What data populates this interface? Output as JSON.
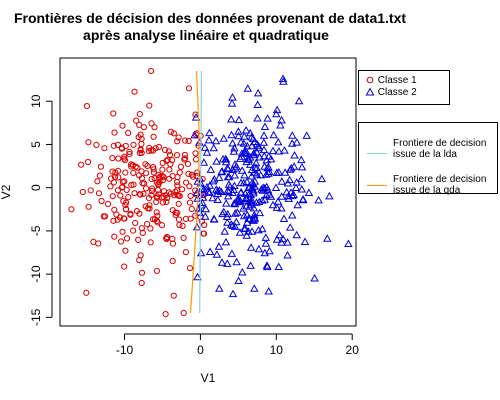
{
  "chart_data": {
    "type": "scatter",
    "title": [
      "Frontières de décision des données provenant de data1.txt",
      "après analyse linéaire et quadratique"
    ],
    "xlabel": "V1",
    "ylabel": "V2",
    "xlim": [
      -18.5,
      20.5
    ],
    "ylim": [
      -16,
      15
    ],
    "x_ticks": [
      -10,
      0,
      10,
      20
    ],
    "y_ticks": [
      -15,
      -10,
      -5,
      0,
      5,
      10
    ],
    "x_tick_labels": [
      "-10",
      "0",
      "10",
      "20"
    ],
    "y_tick_labels": [
      "-15",
      "-10",
      "-5",
      "0",
      "5",
      "10"
    ],
    "grid": false,
    "series": [
      {
        "name": "Classe 1",
        "marker": "circle",
        "color": "#dd0000",
        "n": 260,
        "center": [
          -6.5,
          0
        ],
        "spread": [
          4,
          4.2
        ],
        "extremes": [
          [
            -6.5,
            13.5
          ],
          [
            -2.2,
            -14.5
          ],
          [
            -17,
            -2.5
          ],
          [
            -15.5,
            -0.5
          ],
          [
            -1.5,
            11.5
          ],
          [
            -3.5,
            -12.5
          ]
        ]
      },
      {
        "name": "Classe 2",
        "marker": "triangle",
        "color": "#0000dd",
        "n": 300,
        "center": [
          6.5,
          0
        ],
        "spread": [
          3.8,
          4.1
        ],
        "extremes": [
          [
            19.5,
            -6.5
          ],
          [
            13,
            10
          ],
          [
            16,
            1
          ],
          [
            9,
            -12
          ],
          [
            10,
            8.5
          ],
          [
            14,
            6
          ],
          [
            17,
            -1
          ]
        ]
      }
    ],
    "boundaries": [
      {
        "name": "Frontiere de decision issue de la lda",
        "color": "#87ceeb",
        "points": [
          [
            0.15,
            13.5
          ],
          [
            -0.1,
            -14.5
          ]
        ]
      },
      {
        "name": "Frontiere de decision issue de la qda",
        "color": "#ff9900",
        "points": [
          [
            -0.5,
            13.5
          ],
          [
            -0.2,
            7
          ],
          [
            -0.2,
            2
          ],
          [
            -0.45,
            -3
          ],
          [
            -0.8,
            -8
          ],
          [
            -1.3,
            -14.5
          ]
        ]
      }
    ]
  },
  "legend_points": [
    {
      "label": "Classe 1",
      "color": "#dd0000",
      "marker": "circle"
    },
    {
      "label": "Classe 2",
      "color": "#0000dd",
      "marker": "triangle"
    }
  ],
  "legend_lines": [
    {
      "lines": [
        "Frontiere de decision",
        "issue de la lda"
      ],
      "color": "#87ceeb"
    },
    {
      "lines": [
        "Frontiere de decision",
        "issue de la qda"
      ],
      "color": "#ff9900"
    }
  ]
}
